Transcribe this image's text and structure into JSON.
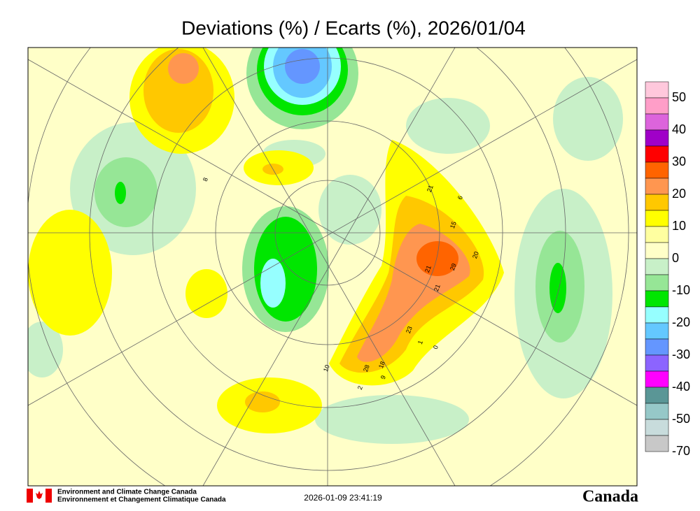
{
  "title": "Deviations (%) / Ecarts (%), 2026/01/04",
  "colorbar": {
    "colors": [
      "#ffc8dc",
      "#ff9ec8",
      "#dc64dc",
      "#a000c8",
      "#ff0000",
      "#ff6400",
      "#ff9650",
      "#ffc800",
      "#ffff00",
      "#ffffa0",
      "#ffffc8",
      "#c8f0c8",
      "#96e696",
      "#00e600",
      "#96ffff",
      "#64c8ff",
      "#6496ff",
      "#8c64ff",
      "#ff00ff",
      "#5a9696",
      "#96c8c8",
      "#c8dcdc",
      "#c8c8c8"
    ],
    "labels": [
      50,
      40,
      30,
      20,
      10,
      0,
      -10,
      -20,
      -30,
      -40,
      -50,
      -70
    ]
  },
  "stations": [
    "21",
    "15",
    "20",
    "29",
    "21",
    "21",
    "23",
    "1",
    "0",
    "18",
    "28",
    "9",
    "2",
    "10",
    "8",
    "6"
  ],
  "footer": {
    "agency_en": "Environment and Climate Change Canada",
    "agency_fr": "Environnement et Changement Climatique Canada",
    "timestamp": "2026-01-09 23:41:19",
    "wordmark": "Canada"
  }
}
